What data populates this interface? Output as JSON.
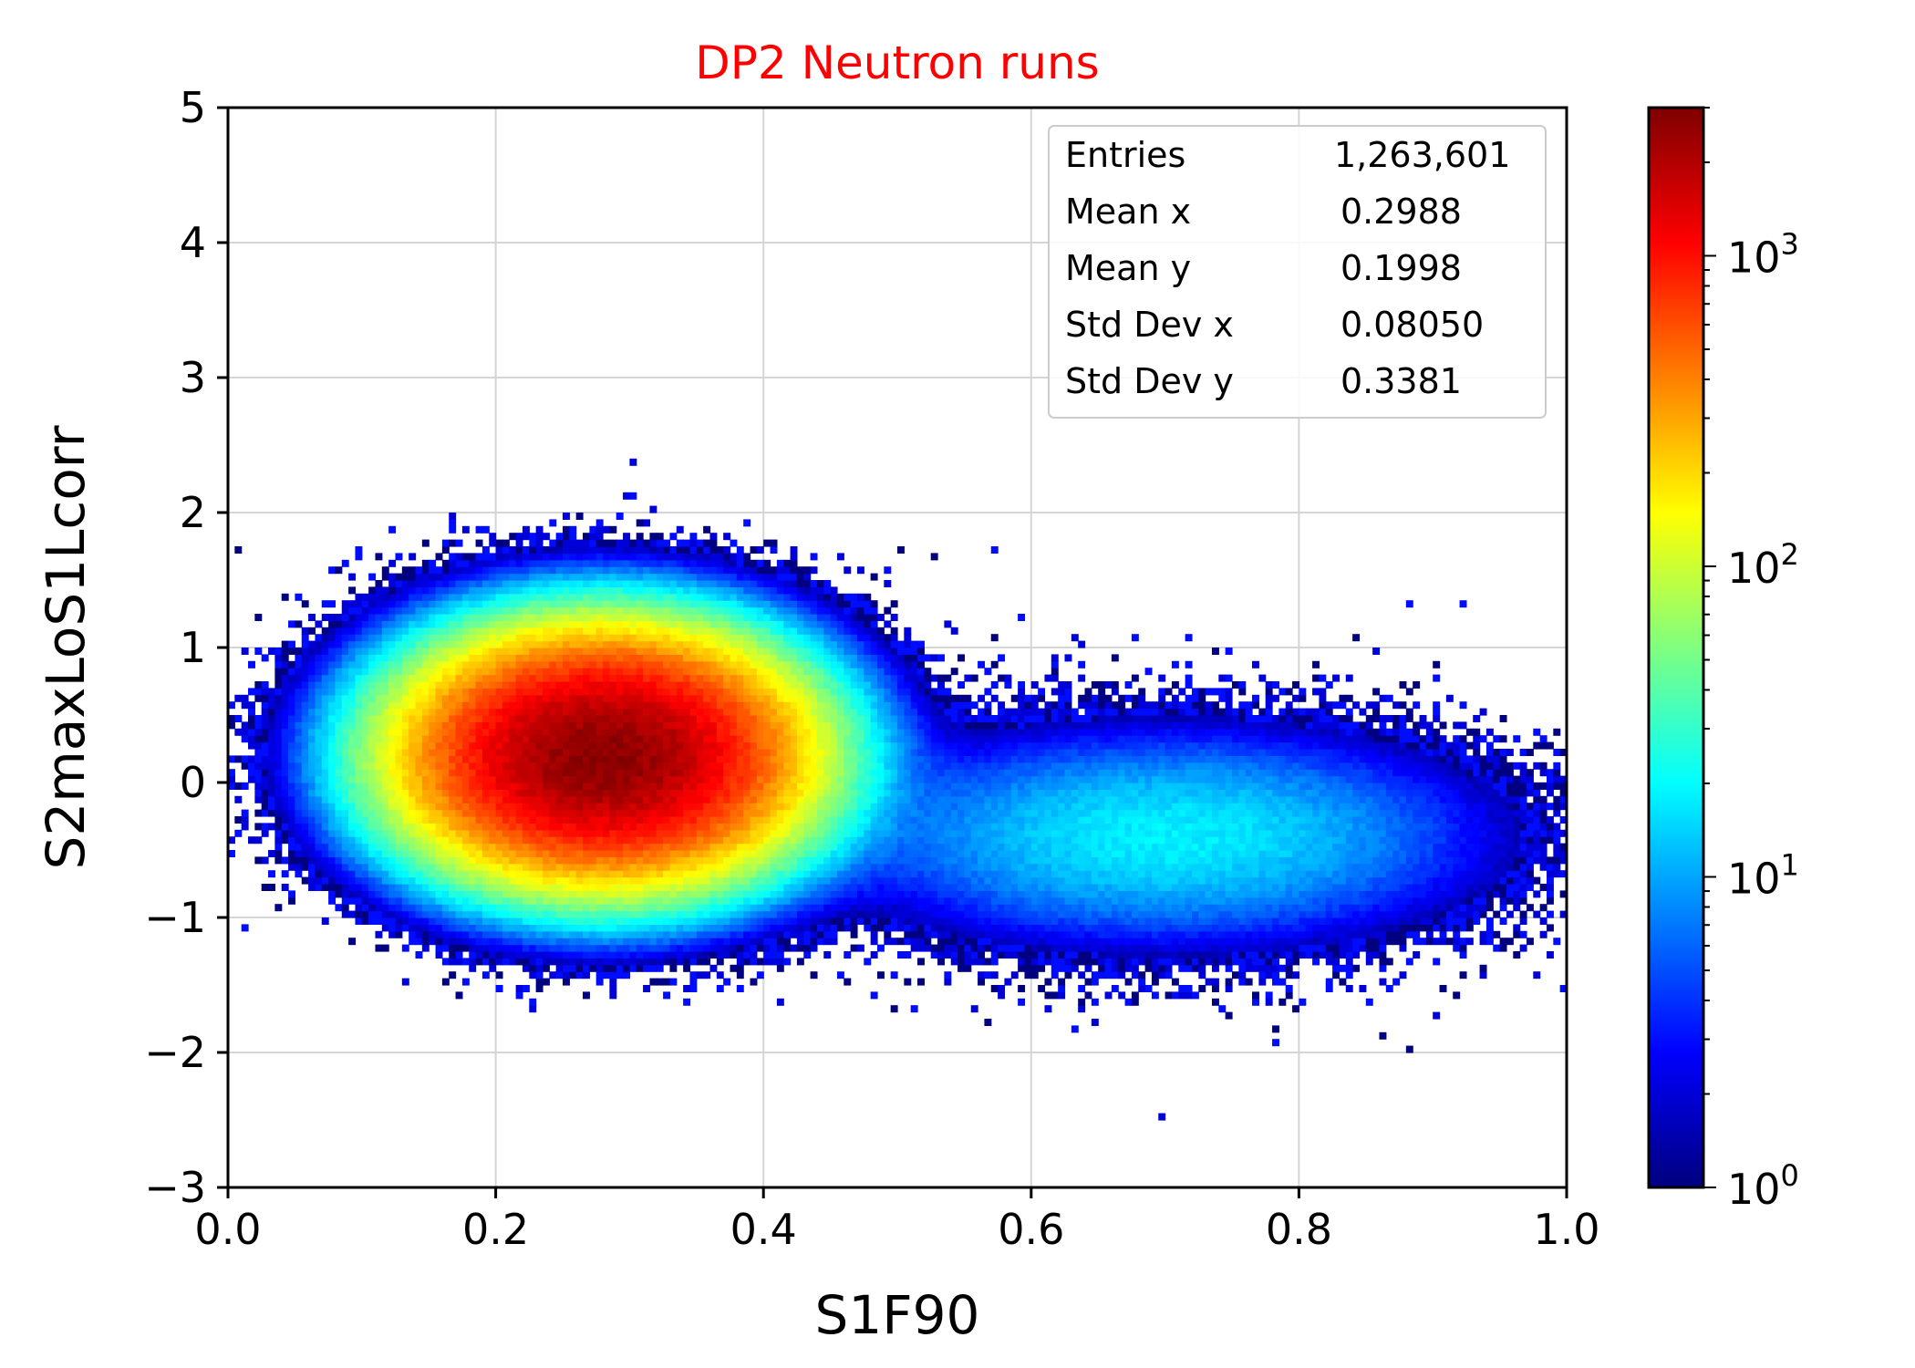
{
  "chart_data": {
    "type": "heatmap",
    "title": "DP2 Neutron runs",
    "title_color": "#ff0000",
    "xlabel": "S1F90",
    "ylabel": "S2maxLoS1Lcorr",
    "xlim": [
      0.0,
      1.0
    ],
    "ylim": [
      -3,
      5
    ],
    "x_ticks": [
      "0.0",
      "0.2",
      "0.4",
      "0.6",
      "0.8",
      "1.0"
    ],
    "y_ticks": [
      "−3",
      "−2",
      "−1",
      "0",
      "1",
      "2",
      "3",
      "4",
      "5"
    ],
    "grid": true,
    "colormap": "jet",
    "color_scale": "log",
    "colorbar_range": [
      1,
      3000
    ],
    "colorbar_ticks": [
      {
        "base": "10",
        "exp": "0"
      },
      {
        "base": "10",
        "exp": "1"
      },
      {
        "base": "10",
        "exp": "2"
      },
      {
        "base": "10",
        "exp": "3"
      }
    ],
    "stats_box": {
      "placement": "top-right",
      "rows": [
        {
          "label": "Entries",
          "value": "1,263,601"
        },
        {
          "label": "Mean x",
          "value": "0.2988"
        },
        {
          "label": "Mean y",
          "value": "0.1998"
        },
        {
          "label": "Std Dev x",
          "value": "0.08050"
        },
        {
          "label": "Std Dev y",
          "value": "0.3381"
        }
      ]
    },
    "entries": 1263601,
    "mean_x": 0.2988,
    "mean_y": 0.1998,
    "std_dev_x": 0.0805,
    "std_dev_y": 0.3381,
    "bins_x": 200,
    "bins_y": 160,
    "populations": [
      {
        "peak_x": 0.28,
        "peak_y": 0.2,
        "sigma_x": 0.065,
        "sigma_y": 0.4,
        "peak_count": 2800
      },
      {
        "peak_x": 0.7,
        "peak_y": -0.4,
        "sigma_x": 0.12,
        "sigma_y": 0.4,
        "peak_count": 18
      }
    ]
  }
}
